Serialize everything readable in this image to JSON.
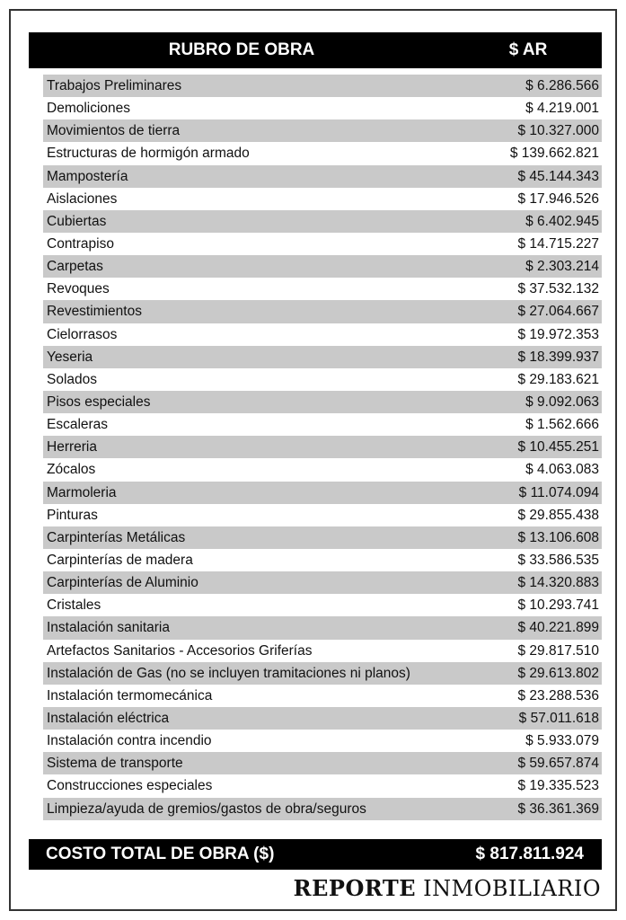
{
  "header": {
    "col_item": "RUBRO DE OBRA",
    "col_amount": "$ AR"
  },
  "items": [
    {
      "label": "Trabajos Preliminares",
      "amount": "$ 6.286.566"
    },
    {
      "label": "Demoliciones",
      "amount": "$ 4.219.001"
    },
    {
      "label": "Movimientos de tierra",
      "amount": "$ 10.327.000"
    },
    {
      "label": "Estructuras de hormigón armado",
      "amount": "$ 139.662.821"
    },
    {
      "label": "Mampostería",
      "amount": "$ 45.144.343"
    },
    {
      "label": "Aislaciones",
      "amount": "$ 17.946.526"
    },
    {
      "label": "Cubiertas",
      "amount": "$ 6.402.945"
    },
    {
      "label": "Contrapiso",
      "amount": "$ 14.715.227"
    },
    {
      "label": "Carpetas",
      "amount": "$ 2.303.214"
    },
    {
      "label": "Revoques",
      "amount": "$ 37.532.132"
    },
    {
      "label": "Revestimientos",
      "amount": "$ 27.064.667"
    },
    {
      "label": "Cielorrasos",
      "amount": "$ 19.972.353"
    },
    {
      "label": "Yeseria",
      "amount": "$ 18.399.937"
    },
    {
      "label": "Solados",
      "amount": "$ 29.183.621"
    },
    {
      "label": "Pisos especiales",
      "amount": "$ 9.092.063"
    },
    {
      "label": "Escaleras",
      "amount": "$ 1.562.666"
    },
    {
      "label": "Herreria",
      "amount": "$ 10.455.251"
    },
    {
      "label": "Zócalos",
      "amount": "$ 4.063.083"
    },
    {
      "label": "Marmoleria",
      "amount": "$ 11.074.094"
    },
    {
      "label": "Pinturas",
      "amount": "$ 29.855.438"
    },
    {
      "label": "Carpinterías Metálicas",
      "amount": "$ 13.106.608"
    },
    {
      "label": "Carpinterías de madera",
      "amount": "$ 33.586.535"
    },
    {
      "label": "Carpinterías de Aluminio",
      "amount": "$ 14.320.883"
    },
    {
      "label": "Cristales",
      "amount": "$ 10.293.741"
    },
    {
      "label": "Instalación sanitaria",
      "amount": "$ 40.221.899"
    },
    {
      "label": "Artefactos Sanitarios - Accesorios Griferías",
      "amount": "$ 29.817.510"
    },
    {
      "label": "Instalación de Gas (no se incluyen tramitaciones ni planos)",
      "amount": "$ 29.613.802"
    },
    {
      "label": "Instalación termomecánica",
      "amount": "$ 23.288.536"
    },
    {
      "label": "Instalación eléctrica",
      "amount": "$ 57.011.618"
    },
    {
      "label": "Instalación contra incendio",
      "amount": "$ 5.933.079"
    },
    {
      "label": "Sistema de transporte",
      "amount": "$ 59.657.874"
    },
    {
      "label": "Construcciones especiales",
      "amount": "$ 19.335.523"
    },
    {
      "label": "Limpieza/ayuda de gremios/gastos de obra/seguros",
      "amount": "$ 36.361.369"
    }
  ],
  "total": {
    "label": "COSTO TOTAL DE OBRA ($)",
    "amount": "$ 817.811.924"
  },
  "brand": {
    "part1": "REPORTE",
    "part2": "INMOBILIARIO"
  },
  "colors": {
    "header_bg": "#000000",
    "shade_row": "#c9c9c9",
    "text": "#111111"
  }
}
